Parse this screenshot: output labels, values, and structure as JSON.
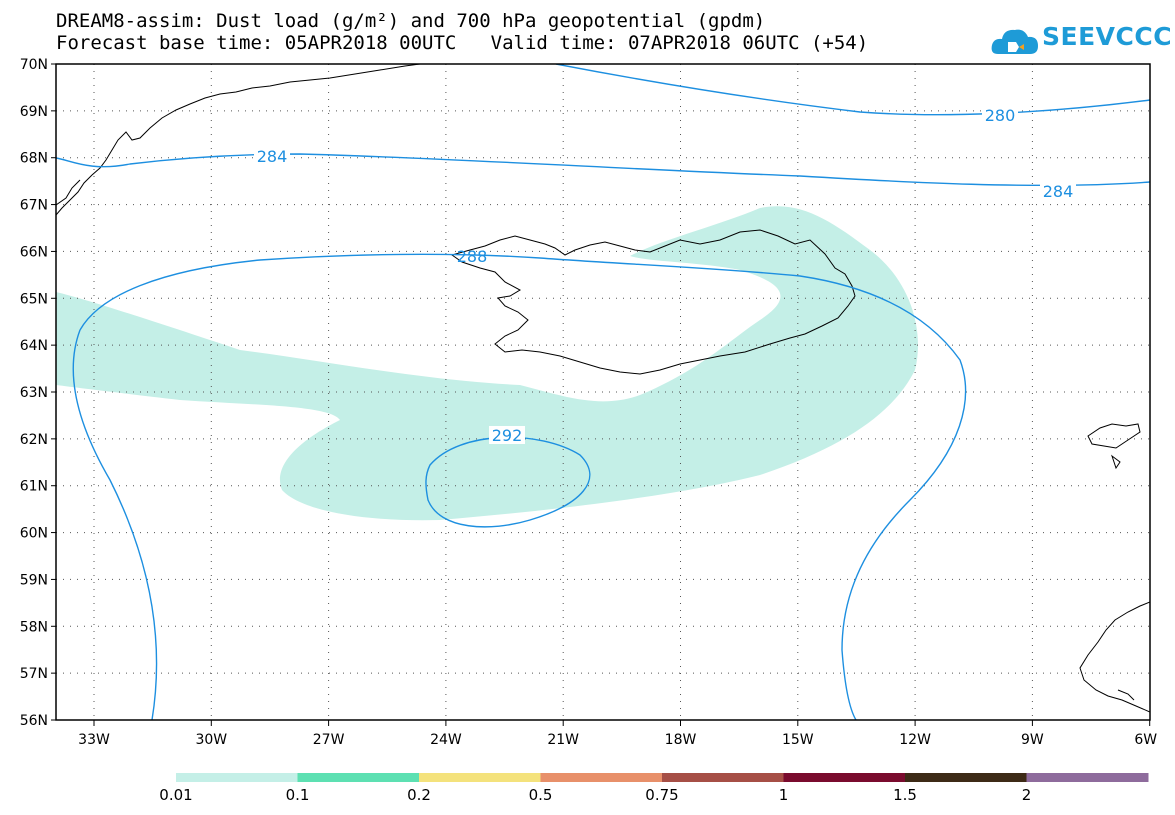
{
  "header": {
    "title_line1": "DREAM8-assim: Dust load (g/m²) and 700 hPa geopotential (gpdm)",
    "title_line2": "Forecast base time: 05APR2018 00UTC   Valid time: 07APR2018 06UTC (+54)"
  },
  "logo": {
    "text": "SEEVCCC",
    "icon": "cloud-logo-icon",
    "color": "#1e9bd7"
  },
  "map": {
    "lat_labels": [
      "70N",
      "69N",
      "68N",
      "67N",
      "66N",
      "65N",
      "64N",
      "63N",
      "62N",
      "61N",
      "60N",
      "59N",
      "58N",
      "57N",
      "56N"
    ],
    "lon_labels": [
      "33W",
      "30W",
      "27W",
      "24W",
      "21W",
      "18W",
      "15W",
      "12W",
      "9W",
      "6W"
    ],
    "contour_labels": {
      "c280": "280",
      "c284a": "284",
      "c284b": "284",
      "c288": "288",
      "c292": "292"
    },
    "dust_fill_color": "#c4efe7",
    "contour_color": "#1d8fe0"
  },
  "legend": {
    "colors": [
      "#c4efe7",
      "#5de0b2",
      "#f4e27c",
      "#e8906a",
      "#a64f46",
      "#7a0b2e",
      "#3d2a16",
      "#8e6b9c"
    ],
    "labels": [
      "0.01",
      "0.1",
      "0.2",
      "0.5",
      "0.75",
      "1",
      "1.5",
      "2"
    ]
  }
}
